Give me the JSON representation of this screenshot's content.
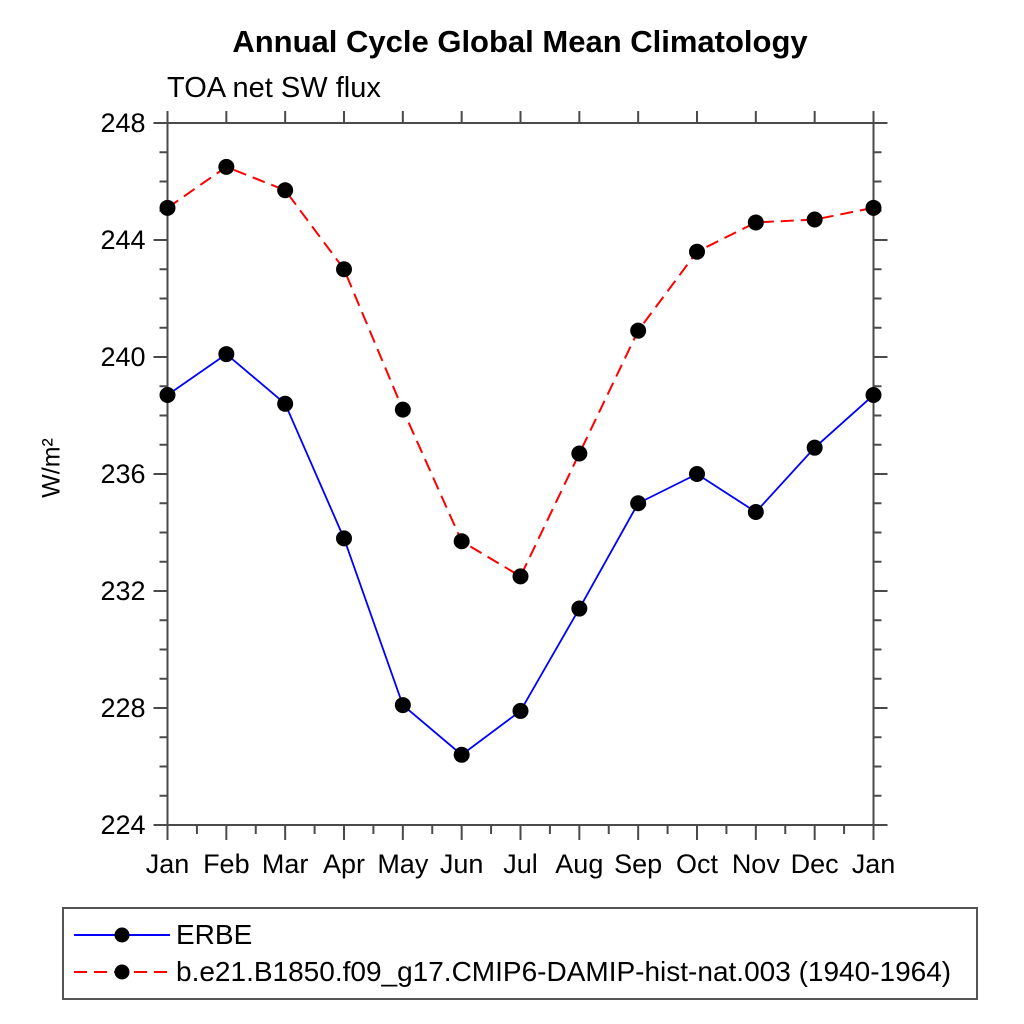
{
  "chart_data": {
    "type": "line",
    "title": "Annual Cycle Global Mean Climatology",
    "subtitle": "TOA net SW flux",
    "ylabel": "W/m²",
    "xlabel": "",
    "categories": [
      "Jan",
      "Feb",
      "Mar",
      "Apr",
      "May",
      "Jun",
      "Jul",
      "Aug",
      "Sep",
      "Oct",
      "Nov",
      "Dec",
      "Jan"
    ],
    "ylim": [
      224,
      248
    ],
    "ytick_major_step": 4,
    "ytick_minor_step": 1,
    "ytick_labels": [
      "224",
      "228",
      "232",
      "236",
      "240",
      "244",
      "248"
    ],
    "grid": false,
    "legend_position": "bottom-left",
    "axis_color": "#4a4a4a",
    "marker": "filled-circle",
    "marker_color": "#000000",
    "series": [
      {
        "name": "ERBE",
        "color": "#0000ff",
        "line_style": "solid",
        "values": [
          238.7,
          240.1,
          238.4,
          233.8,
          228.1,
          226.4,
          227.9,
          231.4,
          235.0,
          236.0,
          234.7,
          236.9,
          238.7
        ]
      },
      {
        "name": "b.e21.B1850.f09_g17.CMIP6-DAMIP-hist-nat.003 (1940-1964)",
        "color": "#ff0000",
        "line_style": "dashed",
        "values": [
          245.1,
          246.5,
          245.7,
          243.0,
          238.2,
          233.7,
          232.5,
          236.7,
          240.9,
          243.6,
          244.6,
          244.7,
          245.1
        ]
      }
    ]
  }
}
